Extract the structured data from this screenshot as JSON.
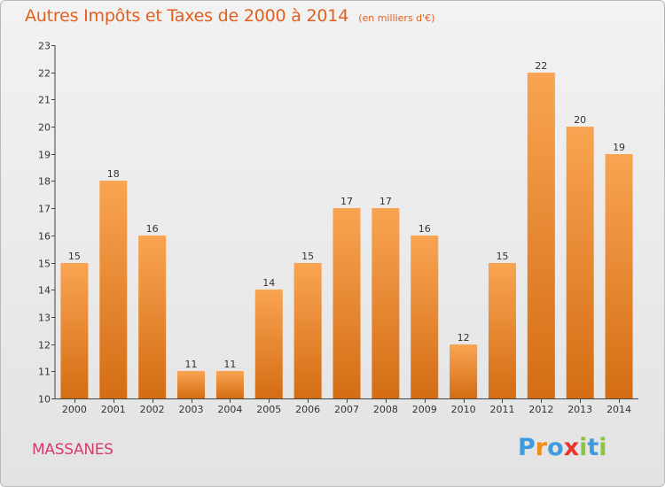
{
  "chart_data": {
    "type": "bar",
    "title": "Autres Impôts et Taxes de 2000 à 2014",
    "subtitle": "(en milliers d'€)",
    "categories": [
      "2000",
      "2001",
      "2002",
      "2003",
      "2004",
      "2005",
      "2006",
      "2007",
      "2008",
      "2009",
      "2010",
      "2011",
      "2012",
      "2013",
      "2014"
    ],
    "values": [
      15,
      18,
      16,
      11,
      11,
      14,
      15,
      17,
      17,
      16,
      12,
      15,
      22,
      20,
      19
    ],
    "ylim": [
      10,
      23
    ],
    "yticks": [
      "10",
      "11",
      "12",
      "13",
      "14",
      "15",
      "16",
      "17",
      "18",
      "19",
      "20",
      "21",
      "22",
      "23"
    ],
    "grid": false,
    "legend": "none"
  },
  "footer": {
    "city": "MASSANES",
    "logo_letters": [
      "P",
      "r",
      "o",
      "x",
      "i",
      "t",
      "i"
    ]
  },
  "colors": {
    "title": "#e0601f",
    "city": "#d63b6a",
    "bar_top": "#f9a452",
    "bar_bottom": "#d46d14",
    "logo": [
      "#3f9be0",
      "#f08c1c",
      "#3f9be0",
      "#e8342a",
      "#8cc43c",
      "#3f9be0",
      "#8cc43c"
    ]
  }
}
